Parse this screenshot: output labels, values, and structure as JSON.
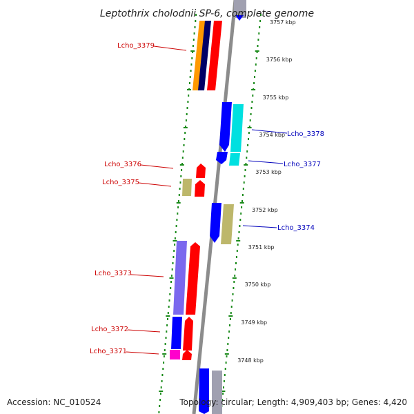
{
  "title": "Leptothrix cholodnii SP-6, complete genome",
  "footer": {
    "accession": "Accession: NC_010524",
    "summary": "Topology: circular; Length: 4,909,403 bp; Genes: 4,420"
  },
  "colors": {
    "backbone": "#8c8c8c",
    "dots": "#1a8a1a",
    "forward_label": "#cc0000",
    "reverse_label": "#0000bb",
    "orange": "#ff9900",
    "navy": "#000066",
    "red": "#ff0000",
    "blue": "#0000ff",
    "cyan": "#00e0e0",
    "khaki": "#bdb76b",
    "slate": "#7b68ee",
    "magenta": "#ff00cc",
    "gray": "#a0a0b0"
  },
  "ticks": [
    "3757 kbp",
    "3756 kbp",
    "3755 kbp",
    "3754 kbp",
    "3753 kbp",
    "3752 kbp",
    "3751 kbp",
    "3750 kbp",
    "3749 kbp",
    "3748 kbp"
  ],
  "gene_labels": {
    "forward": [
      "Lcho_3379",
      "Lcho_3376",
      "Lcho_3375",
      "Lcho_3373",
      "Lcho_3372",
      "Lcho_3371"
    ],
    "reverse": [
      "Lcho_3378",
      "Lcho_3377",
      "Lcho_3374"
    ]
  }
}
